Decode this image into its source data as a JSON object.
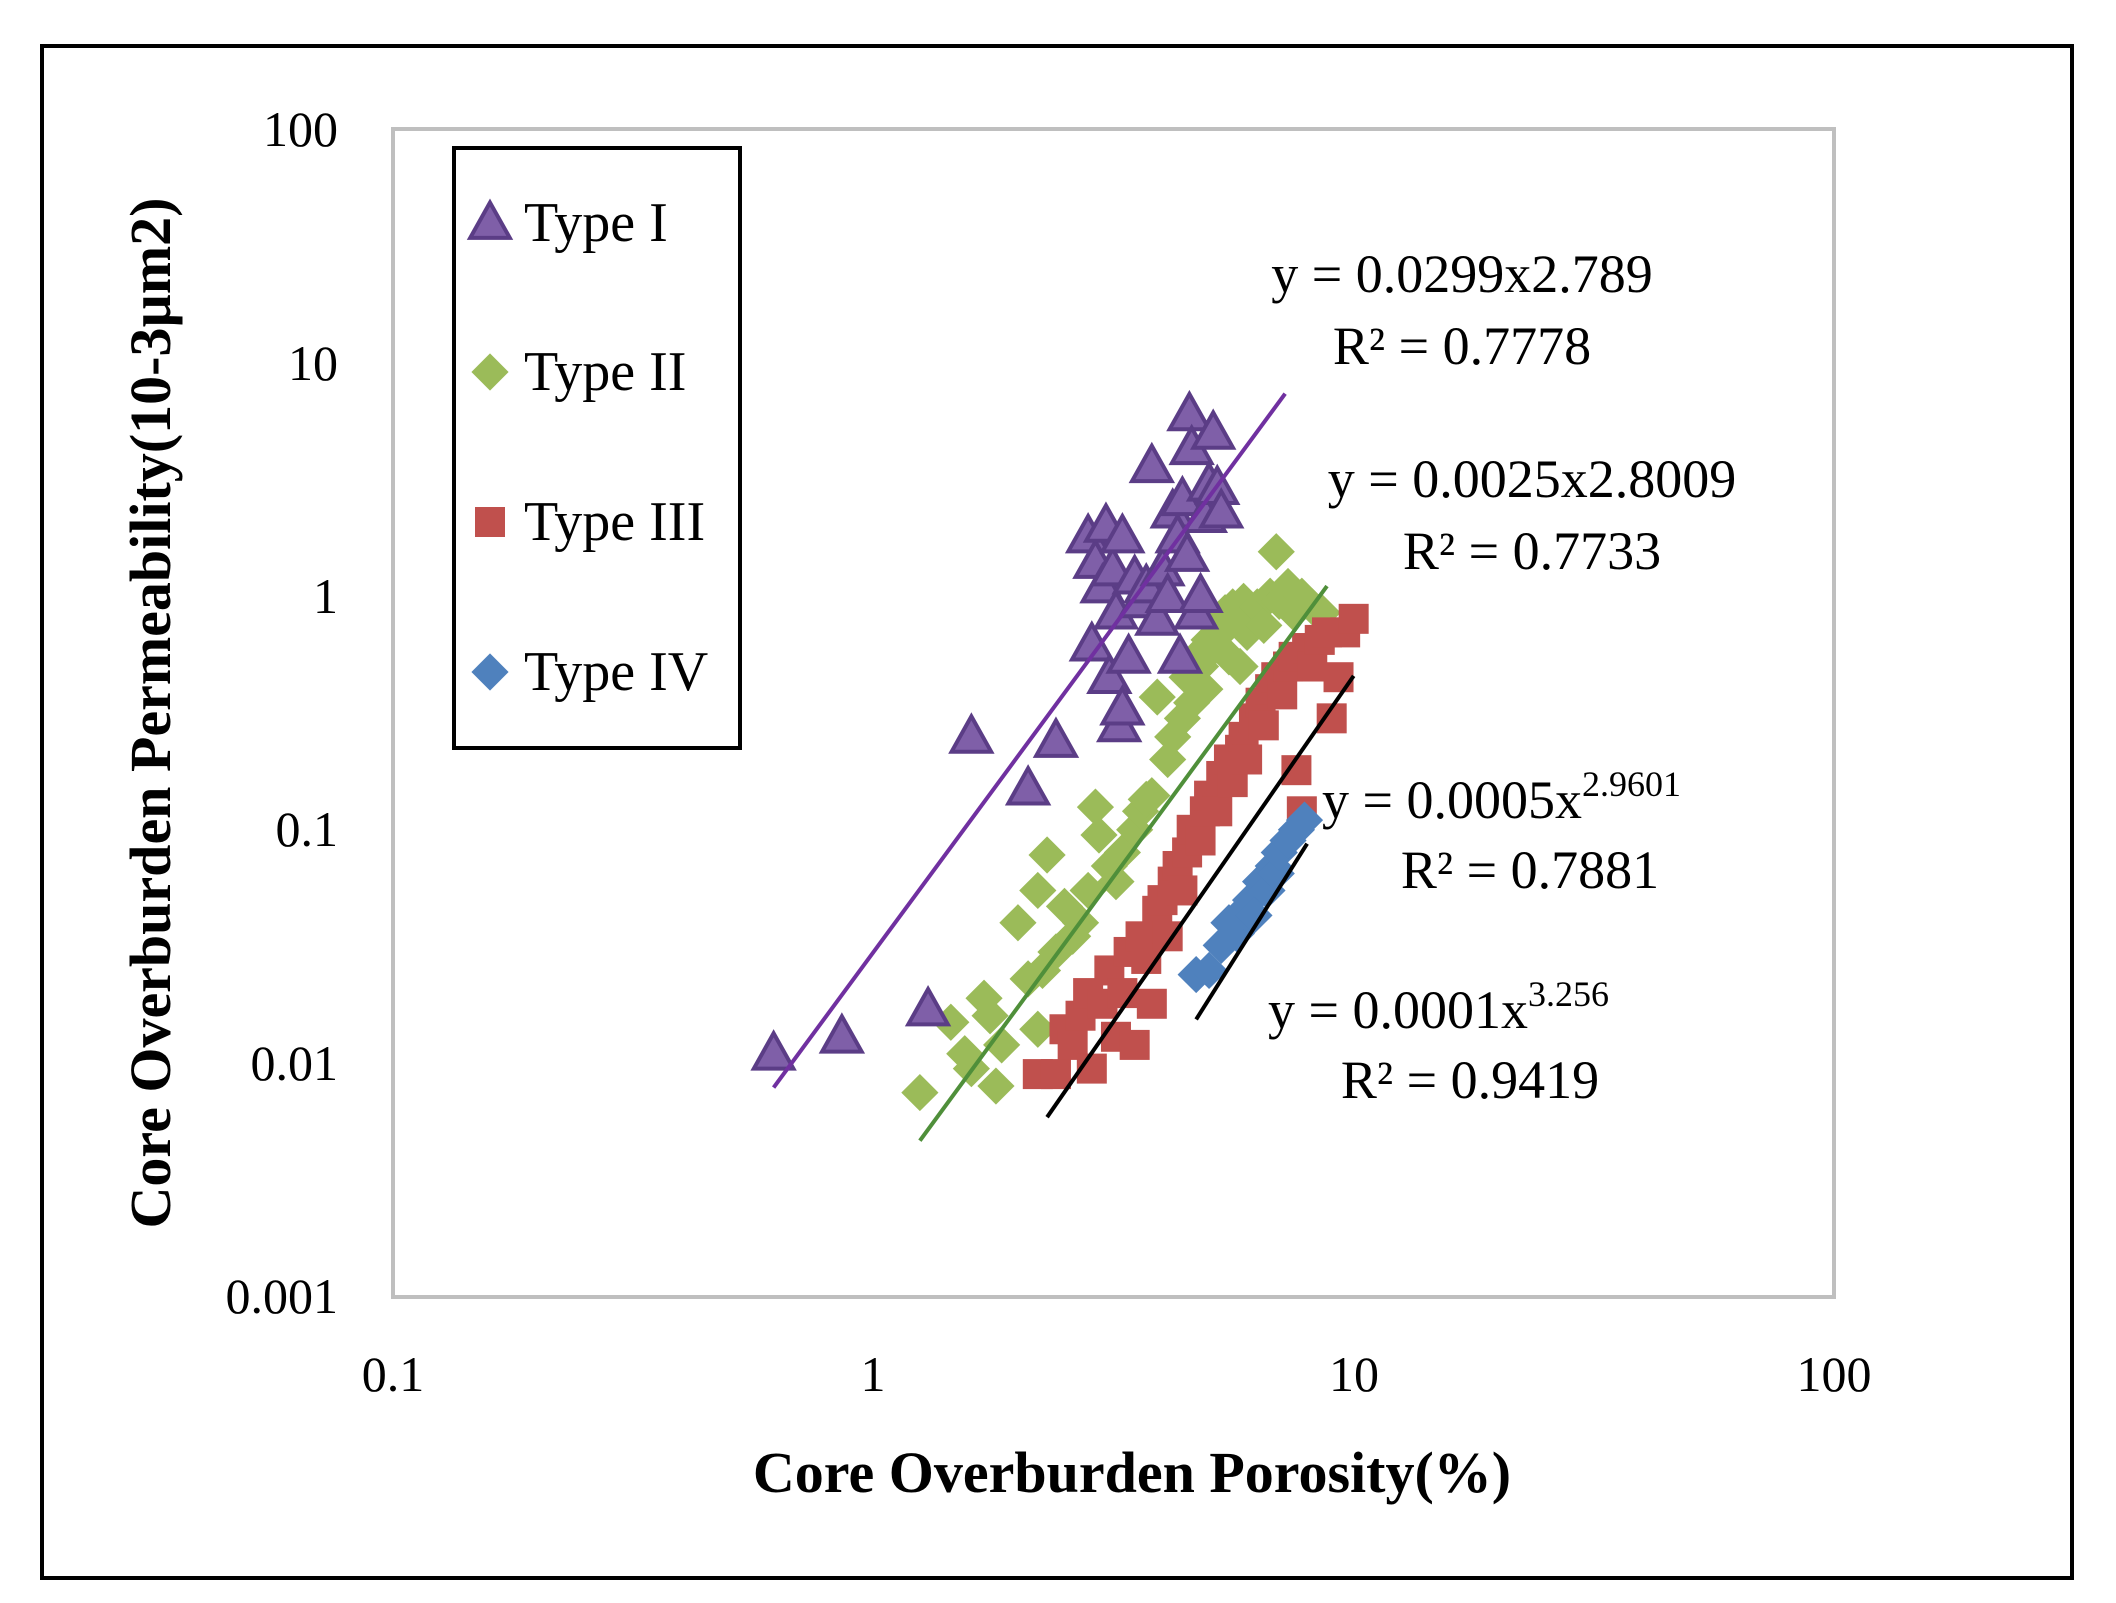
{
  "chart_data": {
    "type": "scatter",
    "x_scale": "log",
    "y_scale": "log",
    "xlabel": "Core Overburden Porosity(%)",
    "ylabel": "Core Overburden Permeability(10-3µm2)",
    "xlim": [
      0.1,
      100
    ],
    "ylim": [
      0.001,
      100
    ],
    "x_ticks": [
      "0.1",
      "1",
      "10",
      "100"
    ],
    "y_ticks": [
      "0.001",
      "0.01",
      "0.1",
      "1",
      "10",
      "100"
    ],
    "grid": false,
    "legend_position": "top-left",
    "series": [
      {
        "name": "Type I",
        "marker": "triangle",
        "color": "#7f5fa8",
        "edge_color": "#5b3d86",
        "points": [
          [
            0.62,
            0.011
          ],
          [
            0.86,
            0.013
          ],
          [
            1.3,
            0.017
          ],
          [
            1.6,
            0.25
          ],
          [
            2.1,
            0.15
          ],
          [
            2.4,
            0.24
          ],
          [
            2.8,
            1.8
          ],
          [
            2.85,
            0.62
          ],
          [
            2.9,
            1.4
          ],
          [
            3.0,
            1.1
          ],
          [
            3.05,
            2.0
          ],
          [
            3.1,
            0.45
          ],
          [
            3.15,
            1.3
          ],
          [
            3.2,
            0.85
          ],
          [
            3.25,
            0.28
          ],
          [
            3.3,
            0.33
          ],
          [
            3.3,
            1.8
          ],
          [
            3.4,
            0.55
          ],
          [
            3.5,
            1.2
          ],
          [
            3.6,
            0.95
          ],
          [
            3.7,
            1.1
          ],
          [
            3.8,
            3.6
          ],
          [
            3.9,
            0.8
          ],
          [
            4.0,
            1.3
          ],
          [
            4.1,
            1.0
          ],
          [
            4.2,
            2.3
          ],
          [
            4.3,
            1.8
          ],
          [
            4.35,
            0.55
          ],
          [
            4.4,
            2.6
          ],
          [
            4.5,
            1.5
          ],
          [
            4.55,
            6.0
          ],
          [
            4.6,
            4.3
          ],
          [
            4.7,
            0.85
          ],
          [
            4.8,
            1.0
          ],
          [
            4.9,
            2.2
          ],
          [
            5.0,
            3.0
          ],
          [
            5.1,
            5.0
          ],
          [
            5.2,
            2.9
          ],
          [
            5.3,
            2.3
          ]
        ]
      },
      {
        "name": "Type II",
        "marker": "diamond",
        "color": "#9bbb59",
        "points": [
          [
            1.25,
            0.0075
          ],
          [
            1.45,
            0.015
          ],
          [
            1.55,
            0.011
          ],
          [
            1.6,
            0.0095
          ],
          [
            1.7,
            0.019
          ],
          [
            1.75,
            0.016
          ],
          [
            1.8,
            0.008
          ],
          [
            1.85,
            0.012
          ],
          [
            2.0,
            0.04
          ],
          [
            2.1,
            0.023
          ],
          [
            2.2,
            0.055
          ],
          [
            2.2,
            0.014
          ],
          [
            2.25,
            0.025
          ],
          [
            2.3,
            0.078
          ],
          [
            2.4,
            0.03
          ],
          [
            2.5,
            0.047
          ],
          [
            2.6,
            0.035
          ],
          [
            2.7,
            0.04
          ],
          [
            2.8,
            0.055
          ],
          [
            2.9,
            0.125
          ],
          [
            2.95,
            0.095
          ],
          [
            3.1,
            0.07
          ],
          [
            3.2,
            0.06
          ],
          [
            3.3,
            0.08
          ],
          [
            3.5,
            0.1
          ],
          [
            3.6,
            0.12
          ],
          [
            3.7,
            0.135
          ],
          [
            3.8,
            0.14
          ],
          [
            3.9,
            0.37
          ],
          [
            4.1,
            0.2
          ],
          [
            4.2,
            0.25
          ],
          [
            4.4,
            0.3
          ],
          [
            4.5,
            0.45
          ],
          [
            4.6,
            0.35
          ],
          [
            4.7,
            0.55
          ],
          [
            4.8,
            0.5
          ],
          [
            4.9,
            0.4
          ],
          [
            5.0,
            0.65
          ],
          [
            5.1,
            0.6
          ],
          [
            5.2,
            0.75
          ],
          [
            5.3,
            0.7
          ],
          [
            5.4,
            0.85
          ],
          [
            5.5,
            0.55
          ],
          [
            5.6,
            0.9
          ],
          [
            5.7,
            0.8
          ],
          [
            5.8,
            0.5
          ],
          [
            5.9,
            0.95
          ],
          [
            6.0,
            0.7
          ],
          [
            6.1,
            0.85
          ],
          [
            6.3,
            0.9
          ],
          [
            6.5,
            0.75
          ],
          [
            6.7,
            1.0
          ],
          [
            6.9,
            1.55
          ],
          [
            7.0,
            0.95
          ],
          [
            7.3,
            1.1
          ],
          [
            7.5,
            0.85
          ],
          [
            7.8,
            1.0
          ],
          [
            8.2,
            0.9
          ],
          [
            8.6,
            0.85
          ]
        ]
      },
      {
        "name": "Type III",
        "marker": "square",
        "color": "#c0504d",
        "points": [
          [
            2.2,
            0.009
          ],
          [
            2.4,
            0.009
          ],
          [
            2.5,
            0.014
          ],
          [
            2.6,
            0.012
          ],
          [
            2.7,
            0.016
          ],
          [
            2.8,
            0.02
          ],
          [
            2.85,
            0.0095
          ],
          [
            3.0,
            0.018
          ],
          [
            3.1,
            0.025
          ],
          [
            3.2,
            0.013
          ],
          [
            3.3,
            0.02
          ],
          [
            3.4,
            0.03
          ],
          [
            3.5,
            0.012
          ],
          [
            3.6,
            0.035
          ],
          [
            3.7,
            0.028
          ],
          [
            3.8,
            0.018
          ],
          [
            3.9,
            0.045
          ],
          [
            4.0,
            0.05
          ],
          [
            4.1,
            0.035
          ],
          [
            4.2,
            0.06
          ],
          [
            4.3,
            0.07
          ],
          [
            4.4,
            0.055
          ],
          [
            4.5,
            0.08
          ],
          [
            4.6,
            0.1
          ],
          [
            4.8,
            0.09
          ],
          [
            4.9,
            0.12
          ],
          [
            5.0,
            0.14
          ],
          [
            5.2,
            0.12
          ],
          [
            5.3,
            0.17
          ],
          [
            5.5,
            0.2
          ],
          [
            5.6,
            0.16
          ],
          [
            5.8,
            0.22
          ],
          [
            5.9,
            0.25
          ],
          [
            6.0,
            0.2
          ],
          [
            6.2,
            0.3
          ],
          [
            6.4,
            0.35
          ],
          [
            6.5,
            0.28
          ],
          [
            6.7,
            0.4
          ],
          [
            6.9,
            0.45
          ],
          [
            7.1,
            0.38
          ],
          [
            7.3,
            0.5
          ],
          [
            7.5,
            0.55
          ],
          [
            7.6,
            0.18
          ],
          [
            7.8,
            0.12
          ],
          [
            8.0,
            0.6
          ],
          [
            8.2,
            0.5
          ],
          [
            8.5,
            0.65
          ],
          [
            8.8,
            0.7
          ],
          [
            9.0,
            0.3
          ],
          [
            9.3,
            0.45
          ],
          [
            9.6,
            0.7
          ],
          [
            10.0,
            0.8
          ]
        ]
      },
      {
        "name": "Type IV",
        "marker": "diamond",
        "color": "#4f81bd",
        "points": [
          [
            4.7,
            0.024
          ],
          [
            5.0,
            0.025
          ],
          [
            5.3,
            0.032
          ],
          [
            5.5,
            0.04
          ],
          [
            5.7,
            0.036
          ],
          [
            5.9,
            0.045
          ],
          [
            6.1,
            0.05
          ],
          [
            6.2,
            0.043
          ],
          [
            6.4,
            0.06
          ],
          [
            6.6,
            0.055
          ],
          [
            6.8,
            0.07
          ],
          [
            6.9,
            0.065
          ],
          [
            7.0,
            0.08
          ],
          [
            7.3,
            0.09
          ],
          [
            7.6,
            0.1
          ],
          [
            7.9,
            0.11
          ]
        ]
      }
    ],
    "trendlines": [
      {
        "series": "Type I",
        "a": 0.0299,
        "b": 2.789,
        "x_range": [
          0.62,
          7.2
        ],
        "color": "#7030a0"
      },
      {
        "series": "Type II",
        "a": 0.0025,
        "b": 2.8009,
        "x_range": [
          1.25,
          8.8
        ],
        "color": "#4f8f3a"
      },
      {
        "series": "Type III",
        "a": 0.0005,
        "b": 2.9601,
        "x_range": [
          2.3,
          10.0
        ],
        "color": "#000000"
      },
      {
        "series": "Type IV",
        "a": 0.0001,
        "b": 3.256,
        "x_range": [
          4.7,
          8.0
        ],
        "color": "#000000"
      }
    ],
    "annotations": [
      {
        "label": "y = 0.0299x2.789",
        "r2": "R² = 0.7778"
      },
      {
        "label": "y = 0.0025x2.8009",
        "r2": "R² = 0.7733"
      },
      {
        "label_main": "y = 0.0005x",
        "label_exp": "2.9601",
        "r2": "R² = 0.7881"
      },
      {
        "label_main": "y = 0.0001x",
        "label_exp": "3.256",
        "r2": "R² = 0.9419"
      }
    ]
  }
}
